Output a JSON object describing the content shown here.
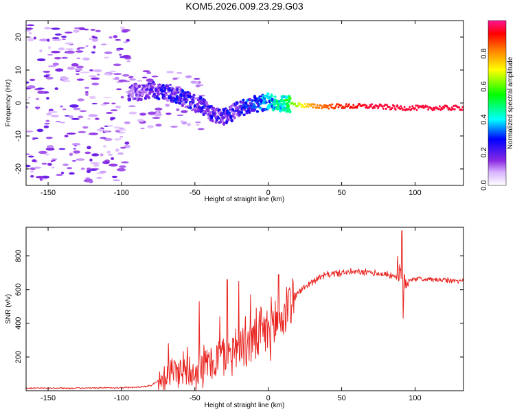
{
  "title": "KOM5.2026.009.23.29.G03",
  "colors": {
    "snr_line": "#e8231f",
    "frame": "#000000"
  },
  "chart_data": [
    {
      "type": "heatmap",
      "name": "spectrogram",
      "xlabel": "Height of straight line (km)",
      "ylabel": "Frequency (Hz)",
      "xlim": [
        -165,
        133
      ],
      "ylim": [
        -25,
        25
      ],
      "xticks": [
        -150,
        -100,
        -50,
        0,
        50,
        100
      ],
      "yticks": [
        -20,
        -10,
        0,
        10,
        20
      ],
      "xtick_labels": [
        "-150",
        "-100",
        "-50",
        "0",
        "50",
        "100"
      ],
      "ytick_labels": [
        "-20",
        "-10",
        "0",
        "10",
        "20"
      ],
      "colorbar": {
        "label": "Normalized spectral amplitude",
        "range": [
          0,
          1
        ],
        "ticks": [
          0.0,
          0.2,
          0.4,
          0.6,
          0.8
        ],
        "tick_labels": [
          "0.0",
          "0.2",
          "0.4",
          "0.6",
          "0.8"
        ],
        "colormap": [
          "#ffffff",
          "#8a2be2",
          "#0000ff",
          "#00ffff",
          "#00ff00",
          "#ffff00",
          "#ff7f00",
          "#ff0000",
          "#ff1493"
        ]
      },
      "ridge": {
        "description": "dominant frequency track (Hz) vs height (km)",
        "x": [
          -90,
          -80,
          -72,
          -65,
          -58,
          -50,
          -45,
          -40,
          -35,
          -30,
          -25,
          -20,
          -15,
          -10,
          -5,
          0,
          5,
          10,
          20,
          30,
          40,
          50,
          60,
          70,
          80,
          90,
          100,
          110,
          120,
          130
        ],
        "y": [
          3,
          4,
          3.5,
          3,
          1.5,
          0,
          -1,
          -3,
          -4,
          -4,
          -3,
          -2,
          -1,
          -0.5,
          0,
          0.5,
          0,
          0,
          -0.5,
          -1,
          -1,
          -1,
          -1,
          -1,
          -1.2,
          -1.5,
          -1.5,
          -1.5,
          -1.5,
          -1.5
        ],
        "amplitude": [
          0.2,
          0.25,
          0.3,
          0.3,
          0.3,
          0.3,
          0.3,
          0.3,
          0.3,
          0.3,
          0.3,
          0.3,
          0.35,
          0.35,
          0.4,
          0.45,
          0.5,
          0.55,
          0.65,
          0.8,
          0.85,
          0.9,
          0.92,
          0.95,
          0.95,
          0.95,
          0.95,
          0.95,
          0.95,
          0.95
        ]
      }
    },
    {
      "type": "line",
      "name": "snr",
      "xlabel": "Height of straight line (km)",
      "ylabel": "SNR (v/v)",
      "xlim": [
        -165,
        133
      ],
      "ylim": [
        0,
        970
      ],
      "xticks": [
        -150,
        -100,
        -50,
        0,
        50,
        100
      ],
      "yticks": [
        200,
        400,
        600,
        800
      ],
      "xtick_labels": [
        "-150",
        "-100",
        "-50",
        "0",
        "50",
        "100"
      ],
      "ytick_labels": [
        "200",
        "400",
        "600",
        "800"
      ],
      "envelope": {
        "description": "approximate mean SNR trend (v/v) vs height (km)",
        "x": [
          -165,
          -120,
          -90,
          -80,
          -70,
          -60,
          -50,
          -40,
          -30,
          -20,
          -10,
          0,
          10,
          20,
          30,
          40,
          50,
          60,
          70,
          80,
          88,
          92,
          95,
          100,
          110,
          120,
          133
        ],
        "y": [
          15,
          15,
          20,
          30,
          90,
          130,
          120,
          160,
          220,
          260,
          300,
          360,
          440,
          580,
          650,
          690,
          700,
          705,
          700,
          690,
          680,
          650,
          660,
          665,
          660,
          655,
          650
        ]
      },
      "peaks": {
        "description": "notable spikes (v/v)",
        "x": [
          -68,
          -55,
          -47,
          -33,
          -28,
          -20,
          -12,
          7,
          14,
          91,
          92
        ],
        "y": [
          280,
          260,
          530,
          440,
          660,
          650,
          570,
          690,
          600,
          950,
          430
        ]
      }
    }
  ]
}
